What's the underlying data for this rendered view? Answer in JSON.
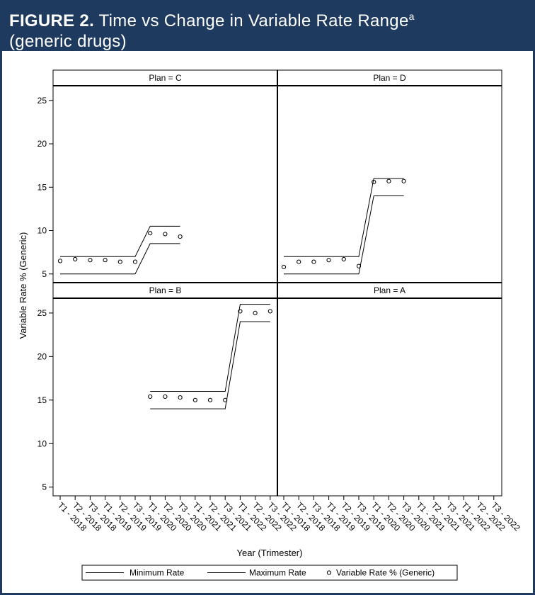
{
  "chart_data": {
    "type": "line",
    "figure_label": "FIGURE 2.",
    "title": "Time vs Change in Variable Rate Range",
    "title_note": "a",
    "subtitle": "(generic drugs)",
    "x_label": "Year (Trimester)",
    "y_label": "Variable Rate % (Generic)",
    "categories": [
      "T1 - 2018",
      "T2 - 2018",
      "T3 - 2018",
      "T1 - 2019",
      "T2 - 2019",
      "T3 - 2019",
      "T1 - 2020",
      "T2 - 2020",
      "T3 - 2020",
      "T1 - 2021",
      "T2 - 2021",
      "T3 - 2021",
      "T1 - 2022",
      "T2 - 2022",
      "T3 - 2022"
    ],
    "ylim": [
      4,
      26.7
    ],
    "yticks": [
      5,
      10,
      15,
      20,
      25
    ],
    "series": [
      {
        "name": "Minimum Rate",
        "color": "#000000",
        "style": "line"
      },
      {
        "name": "Maximum Rate",
        "color": "#000000",
        "style": "line"
      },
      {
        "name": "Variable Rate % (Generic)",
        "color": "#000000",
        "style": "marker"
      }
    ],
    "panels": [
      {
        "title": "Plan = C",
        "values": [
          [
            5,
            5,
            5,
            5,
            5,
            5,
            8.5,
            8.5,
            8.5,
            null,
            null,
            null,
            null,
            null,
            null
          ],
          [
            7,
            7,
            7,
            7,
            7,
            7,
            10.5,
            10.5,
            10.5,
            null,
            null,
            null,
            null,
            null,
            null
          ],
          [
            6.5,
            6.7,
            6.6,
            6.6,
            6.4,
            6.4,
            9.7,
            9.6,
            9.3,
            null,
            null,
            null,
            null,
            null,
            null
          ]
        ]
      },
      {
        "title": "Plan = D",
        "values": [
          [
            5,
            5,
            5,
            5,
            5,
            5,
            14,
            14,
            14,
            null,
            null,
            null,
            null,
            null,
            null
          ],
          [
            7,
            7,
            7,
            7,
            7,
            7,
            16,
            16,
            16,
            null,
            null,
            null,
            null,
            null,
            null
          ],
          [
            5.8,
            6.4,
            6.4,
            6.6,
            6.7,
            5.9,
            15.6,
            15.7,
            15.7,
            null,
            null,
            null,
            null,
            null,
            null
          ]
        ]
      },
      {
        "title": "Plan = B",
        "values": [
          [
            null,
            null,
            null,
            null,
            null,
            null,
            14,
            14,
            14,
            14,
            14,
            14,
            24,
            24,
            24
          ],
          [
            null,
            null,
            null,
            null,
            null,
            null,
            16,
            16,
            16,
            16,
            16,
            16,
            26,
            26,
            26
          ],
          [
            null,
            null,
            null,
            null,
            null,
            null,
            15.4,
            15.4,
            15.3,
            15,
            15,
            15,
            25.2,
            25,
            25.2
          ]
        ]
      },
      {
        "title": "Plan = A",
        "values": [
          [
            null,
            null,
            null,
            null,
            null,
            null,
            null,
            null,
            null,
            null,
            null,
            null,
            null,
            null,
            null
          ],
          [
            null,
            null,
            null,
            null,
            null,
            null,
            null,
            null,
            null,
            null,
            null,
            null,
            null,
            null,
            null
          ],
          [
            null,
            null,
            null,
            null,
            null,
            null,
            null,
            null,
            null,
            null,
            null,
            null,
            null,
            null,
            null
          ]
        ]
      }
    ]
  }
}
